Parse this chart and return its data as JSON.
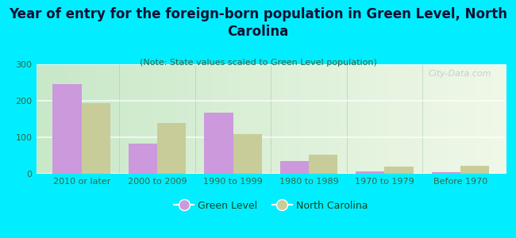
{
  "title": "Year of entry for the foreign-born population in Green Level, North\nCarolina",
  "subtitle": "(Note: State values scaled to Green Level population)",
  "categories": [
    "2010 or later",
    "2000 to 2009",
    "1990 to 1999",
    "1980 to 1989",
    "1970 to 1979",
    "Before 1970"
  ],
  "green_level_values": [
    245,
    82,
    168,
    35,
    7,
    4
  ],
  "north_carolina_values": [
    193,
    140,
    109,
    52,
    20,
    22
  ],
  "green_level_color": "#cc99dd",
  "north_carolina_color": "#c8cc99",
  "background_color": "#00eeff",
  "ylim": [
    0,
    300
  ],
  "yticks": [
    0,
    100,
    200,
    300
  ],
  "watermark": "City-Data.com",
  "bar_width": 0.38,
  "legend_labels": [
    "Green Level",
    "North Carolina"
  ],
  "title_fontsize": 12,
  "subtitle_fontsize": 8,
  "tick_fontsize": 8,
  "legend_fontsize": 9,
  "grad_left": "#c8e8c8",
  "grad_right": "#f0f8e8",
  "grid_color": "#c8ddc8"
}
